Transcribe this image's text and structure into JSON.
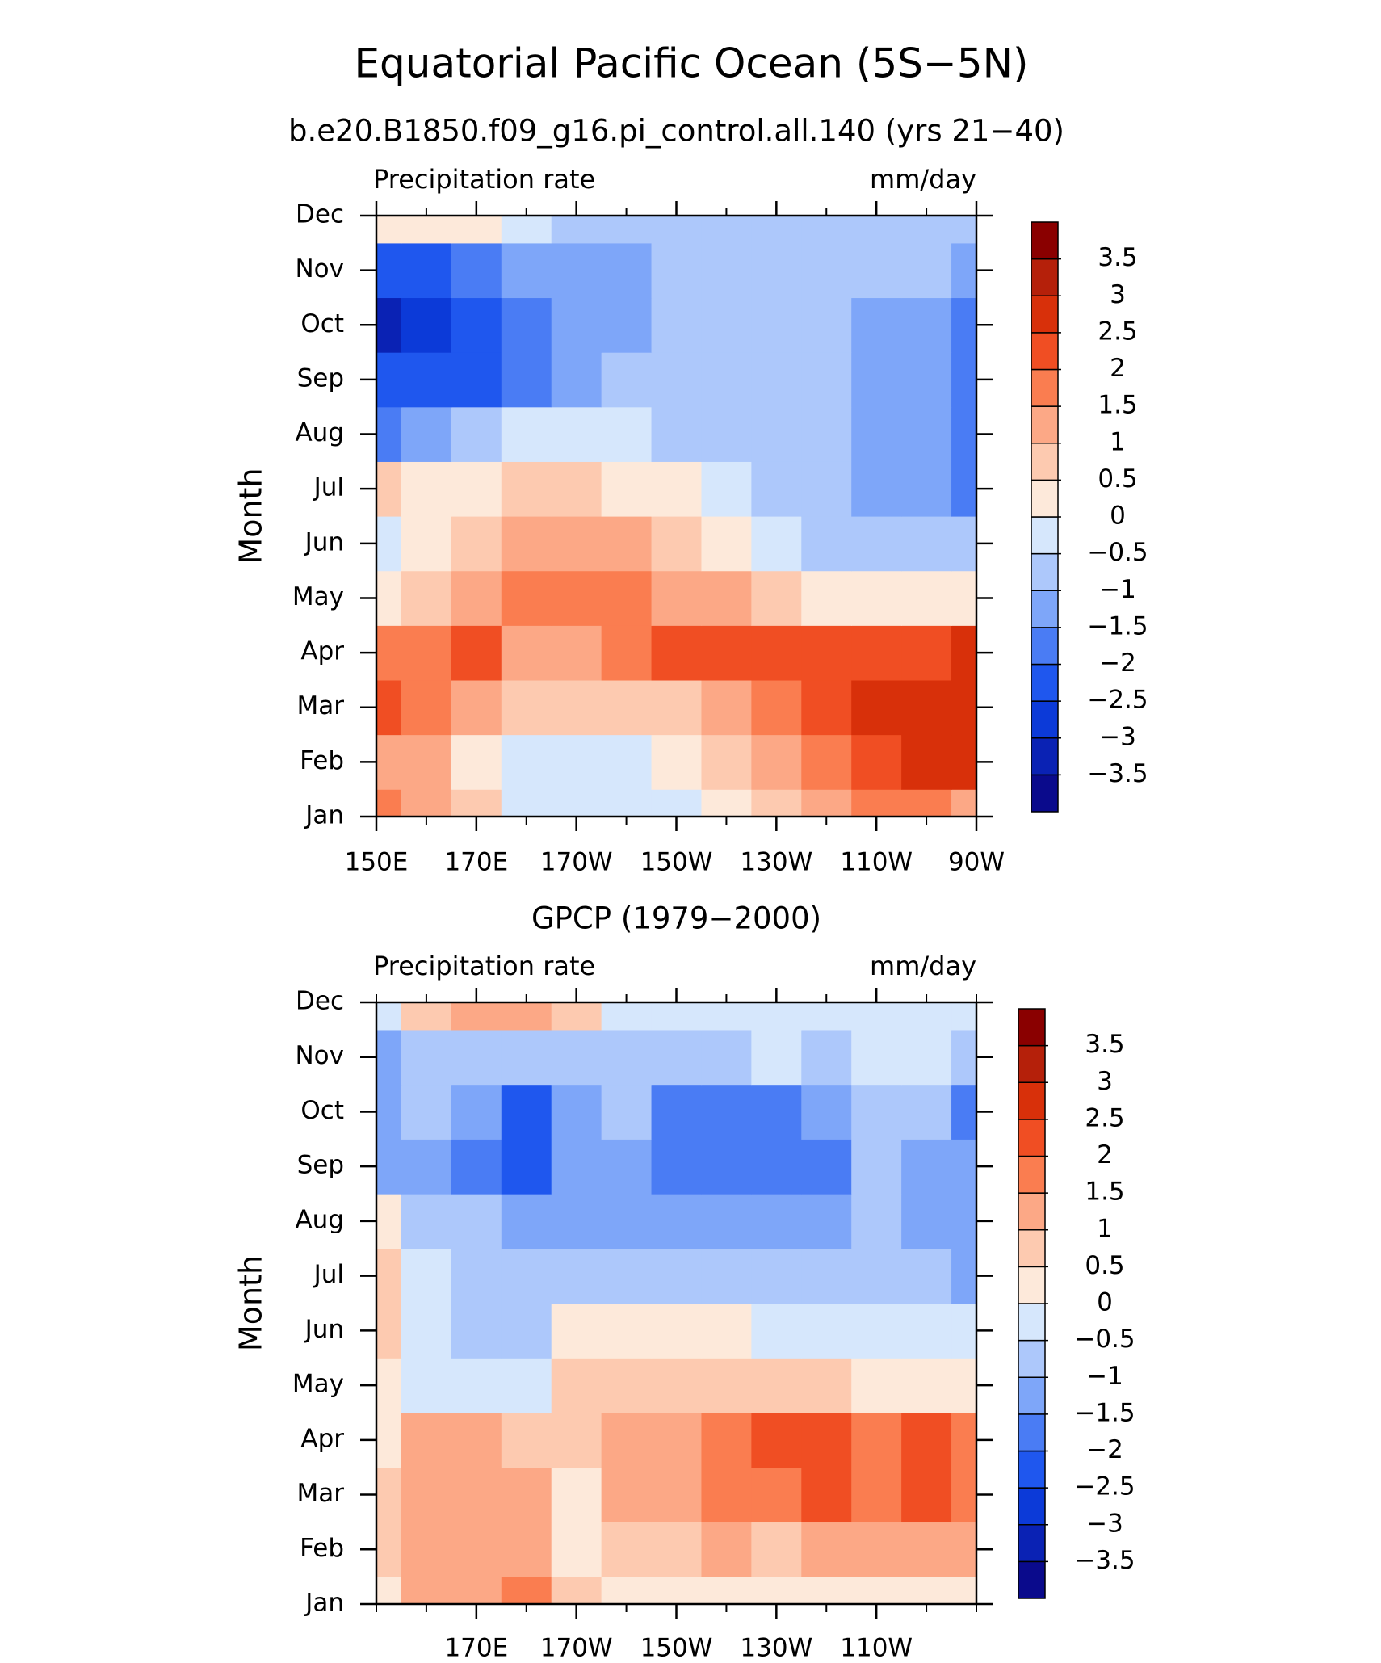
{
  "title": "Equatorial Pacific Ocean (5S−5N)",
  "chart_data": [
    {
      "type": "contour",
      "title": "b.e20.B1850.f09_g16.pi_control.all.140 (yrs 21−40)",
      "left_label": "Precipitation rate",
      "right_label": "mm/day",
      "ylabel": "Month",
      "categories": [
        "Jan",
        "Feb",
        "Mar",
        "Apr",
        "May",
        "Jun",
        "Jul",
        "Aug",
        "Sep",
        "Oct",
        "Nov",
        "Dec"
      ],
      "x": [
        150,
        160,
        170,
        180,
        190,
        200,
        210,
        220,
        230,
        240,
        250,
        260,
        270
      ],
      "xlim": [
        150,
        270
      ],
      "xticks": [
        {
          "value": 150,
          "label": "150E"
        },
        {
          "value": 170,
          "label": "170E"
        },
        {
          "value": 190,
          "label": "170W"
        },
        {
          "value": 210,
          "label": "150W"
        },
        {
          "value": 230,
          "label": "130W"
        },
        {
          "value": 250,
          "label": "110W"
        },
        {
          "value": 270,
          "label": "90W"
        }
      ],
      "xminorticks": [
        160,
        180,
        200,
        220,
        240,
        260
      ],
      "z": [
        [
          1.6,
          1.3,
          0.7,
          -0.2,
          -0.3,
          -0.3,
          -0.2,
          0.2,
          0.7,
          1.2,
          1.5,
          1.7,
          1.2
        ],
        [
          1.3,
          1.0,
          0.3,
          -0.2,
          -0.3,
          -0.2,
          0.2,
          0.6,
          1.1,
          1.6,
          2.1,
          2.6,
          2.7
        ],
        [
          2.2,
          1.7,
          1.2,
          0.7,
          0.6,
          0.7,
          0.9,
          1.2,
          1.6,
          2.1,
          2.5,
          2.7,
          2.8
        ],
        [
          1.7,
          1.8,
          2.1,
          1.2,
          1.3,
          1.6,
          2.0,
          2.2,
          2.2,
          2.2,
          2.3,
          2.4,
          2.6
        ],
        [
          0.4,
          0.8,
          1.2,
          1.7,
          1.8,
          1.6,
          1.4,
          1.1,
          0.7,
          0.4,
          0.1,
          0.1,
          0.3
        ],
        [
          -0.2,
          0.3,
          0.5,
          1.2,
          1.2,
          1.1,
          0.6,
          0.2,
          -0.2,
          -0.6,
          -0.8,
          -0.8,
          -0.7
        ],
        [
          0.5,
          0.1,
          0.3,
          0.6,
          0.5,
          0.4,
          0.2,
          -0.3,
          -0.6,
          -0.9,
          -1.1,
          -1.4,
          -1.7
        ],
        [
          -1.6,
          -1.2,
          -0.7,
          -0.4,
          -0.3,
          -0.4,
          -0.6,
          -0.8,
          -0.9,
          -0.9,
          -1.1,
          -1.3,
          -1.6
        ],
        [
          -2.4,
          -2.3,
          -2.1,
          -1.6,
          -1.2,
          -0.9,
          -0.8,
          -0.8,
          -0.8,
          -0.9,
          -1.2,
          -1.4,
          -1.7
        ],
        [
          -3.2,
          -2.8,
          -2.3,
          -1.7,
          -1.3,
          -1.1,
          -0.9,
          -0.8,
          -0.8,
          -0.9,
          -1.1,
          -1.3,
          -1.7
        ],
        [
          -2.2,
          -2.1,
          -1.6,
          -1.2,
          -1.1,
          -1.1,
          -0.9,
          -0.8,
          -0.8,
          -0.8,
          -0.8,
          -0.9,
          -1.2
        ],
        [
          0.2,
          0.3,
          0.2,
          -0.3,
          -0.6,
          -0.8,
          -0.8,
          -0.8,
          -0.8,
          -0.8,
          -0.8,
          -0.8,
          -0.8
        ]
      ],
      "levels": [
        {
          "value": -3.5,
          "label": "−3.5"
        },
        {
          "value": -3,
          "label": "−3"
        },
        {
          "value": -2.5,
          "label": "−2.5"
        },
        {
          "value": -2,
          "label": "−2"
        },
        {
          "value": -1.5,
          "label": "−1.5"
        },
        {
          "value": -1,
          "label": "−1"
        },
        {
          "value": -0.5,
          "label": "−0.5"
        },
        0,
        {
          "value": 0.5,
          "label": "0.5"
        },
        1,
        {
          "value": 1.5,
          "label": "1.5"
        },
        2,
        {
          "value": 2.5,
          "label": "2.5"
        },
        3,
        {
          "value": 3.5,
          "label": "3.5"
        }
      ],
      "colors": [
        "#0a0a8c",
        "#0a22b4",
        "#0c3ad8",
        "#1f57ee",
        "#4a7cf4",
        "#7ea6f9",
        "#adc8fb",
        "#d6e7fc",
        "#fde9da",
        "#fdcab0",
        "#fca886",
        "#fa7d50",
        "#f04e23",
        "#d8300a",
        "#b5200a",
        "#8a0000"
      ]
    },
    {
      "type": "contour",
      "title": "GPCP (1979−2000)",
      "left_label": "Precipitation rate",
      "right_label": "mm/day",
      "ylabel": "Month",
      "categories": [
        "Jan",
        "Feb",
        "Mar",
        "Apr",
        "May",
        "Jun",
        "Jul",
        "Aug",
        "Sep",
        "Oct",
        "Nov",
        "Dec"
      ],
      "x": [
        150,
        160,
        170,
        180,
        190,
        200,
        210,
        220,
        230,
        240,
        250,
        260,
        270
      ],
      "xlim": [
        150,
        270
      ],
      "xticks": [
        {
          "value": 170,
          "label": "170E"
        },
        {
          "value": 190,
          "label": "170W"
        },
        {
          "value": 210,
          "label": "150W"
        },
        {
          "value": 230,
          "label": "130W"
        },
        {
          "value": 250,
          "label": "110W"
        }
      ],
      "xminorticks": [
        150,
        160,
        180,
        200,
        220,
        240,
        260,
        270
      ],
      "z": [
        [
          0.3,
          1.2,
          1.3,
          1.7,
          0.6,
          0.4,
          0.3,
          0.2,
          0.2,
          0.1,
          0.2,
          0.3,
          0.4
        ],
        [
          0.8,
          1.3,
          1.2,
          1.1,
          0.3,
          0.6,
          0.9,
          1.0,
          0.9,
          1.0,
          1.1,
          1.2,
          1.2
        ],
        [
          0.8,
          1.2,
          1.3,
          1.1,
          0.3,
          1.0,
          1.3,
          1.6,
          1.8,
          2.1,
          1.7,
          2.1,
          1.8
        ],
        [
          0.3,
          1.2,
          1.1,
          0.8,
          0.8,
          1.2,
          1.4,
          1.8,
          2.1,
          2.1,
          1.6,
          2.0,
          1.8
        ],
        [
          0.2,
          -0.3,
          -0.4,
          -0.5,
          0.8,
          0.9,
          0.8,
          0.7,
          0.6,
          0.5,
          0.4,
          0.3,
          0.2
        ],
        [
          0.6,
          -0.3,
          -0.6,
          -0.8,
          0.1,
          0.4,
          0.3,
          0.1,
          -0.2,
          -0.4,
          -0.5,
          -0.5,
          -0.5
        ],
        [
          0.7,
          -0.4,
          -0.7,
          -0.8,
          -0.6,
          -0.6,
          -0.6,
          -0.7,
          -0.8,
          -0.9,
          -0.9,
          -1.0,
          -1.2
        ],
        [
          0.2,
          -0.8,
          -1.0,
          -1.2,
          -1.1,
          -1.2,
          -1.2,
          -1.2,
          -1.2,
          -1.1,
          -0.9,
          -1.3,
          -1.2
        ],
        [
          -1.2,
          -1.4,
          -1.8,
          -2.1,
          -1.4,
          -1.3,
          -1.6,
          -1.6,
          -1.6,
          -1.6,
          -0.9,
          -1.3,
          -1.4
        ],
        [
          -1.2,
          -1.0,
          -1.5,
          -2.1,
          -1.3,
          -1.0,
          -1.6,
          -1.6,
          -1.6,
          -1.4,
          -0.9,
          -1.0,
          -1.6
        ],
        [
          -1.2,
          -0.8,
          -0.8,
          -0.9,
          -0.9,
          -0.8,
          -0.6,
          -0.6,
          -0.5,
          -0.6,
          -0.5,
          -0.5,
          -0.6
        ],
        [
          -0.3,
          0.6,
          1.0,
          1.3,
          0.5,
          -0.2,
          -0.4,
          -0.4,
          -0.5,
          -0.4,
          -0.4,
          -0.4,
          -0.3
        ]
      ],
      "levels": [
        {
          "value": -3.5,
          "label": "−3.5"
        },
        {
          "value": -3,
          "label": "−3"
        },
        {
          "value": -2.5,
          "label": "−2.5"
        },
        {
          "value": -2,
          "label": "−2"
        },
        {
          "value": -1.5,
          "label": "−1.5"
        },
        {
          "value": -1,
          "label": "−1"
        },
        {
          "value": -0.5,
          "label": "−0.5"
        },
        0,
        {
          "value": 0.5,
          "label": "0.5"
        },
        1,
        {
          "value": 1.5,
          "label": "1.5"
        },
        2,
        {
          "value": 2.5,
          "label": "2.5"
        },
        3,
        {
          "value": 3.5,
          "label": "3.5"
        }
      ],
      "colors": [
        "#0a0a8c",
        "#0a22b4",
        "#0c3ad8",
        "#1f57ee",
        "#4a7cf4",
        "#7ea6f9",
        "#adc8fb",
        "#d6e7fc",
        "#fde9da",
        "#fdcab0",
        "#fca886",
        "#fa7d50",
        "#f04e23",
        "#d8300a",
        "#b5200a",
        "#8a0000"
      ]
    }
  ]
}
